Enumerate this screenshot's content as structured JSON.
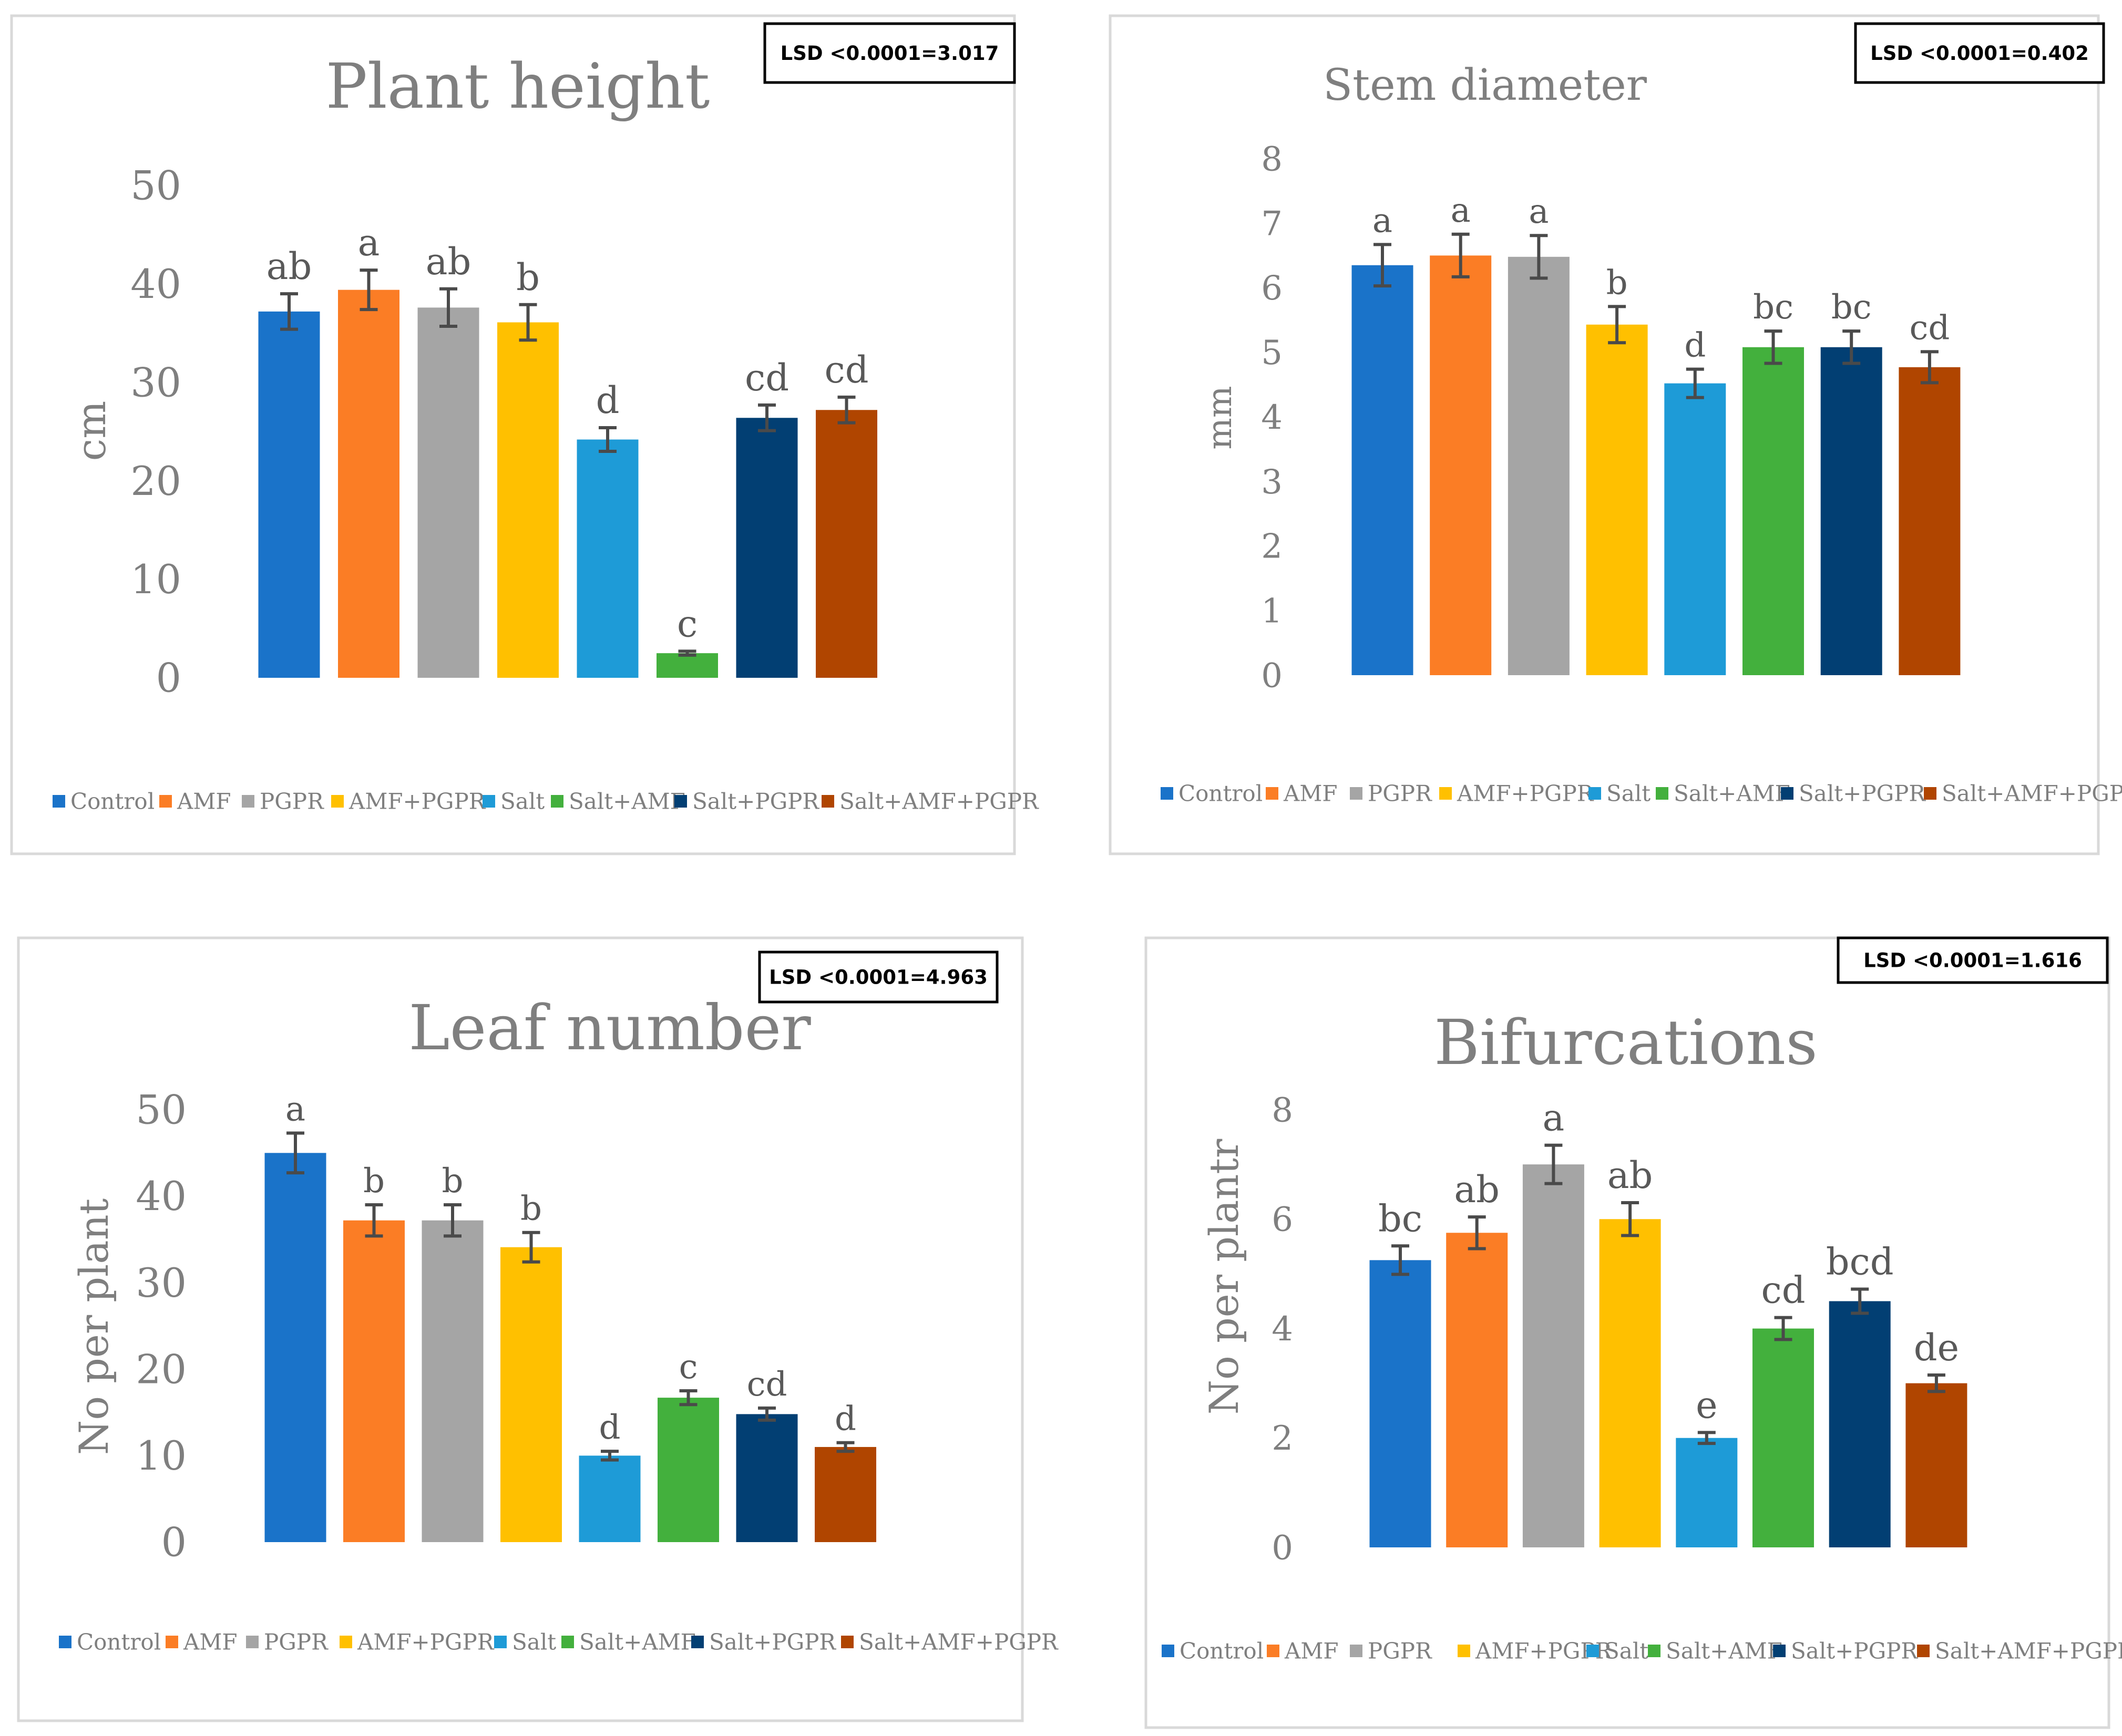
{
  "colors": {
    "Control": "#1a73c9",
    "AMF": "#fb7d25",
    "PGPR": "#a5a5a5",
    "AMF+PGPR": "#ffc000",
    "Salt": "#1e9bd7",
    "Salt+AMF": "#43b03d",
    "Salt+PGPR": "#023f73",
    "Salt+AMF+PGPR": "#b04500",
    "axis_text": "#7f7f7f",
    "letter_text": "#595959",
    "error_bar": "#4a4a4a",
    "frame": "#d9d9d9"
  },
  "legend": [
    "Control",
    "AMF",
    "PGPR",
    "AMF+PGPR",
    "Salt",
    "Salt+AMF",
    "Salt+PGPR",
    "Salt+AMF+PGPR"
  ],
  "chart_data": [
    {
      "type": "bar",
      "title": "Plant height",
      "ylabel": "cm",
      "xlabel": "",
      "lsd": "LSD <0.0001=3.017",
      "ylim": [
        0,
        50
      ],
      "yticks": [
        0,
        10,
        20,
        30,
        40,
        50
      ],
      "categories": [
        "Control",
        "AMF",
        "PGPR",
        "AMF+PGPR",
        "Salt",
        "Salt+AMF",
        "Salt+PGPR",
        "Salt+AMF+PGPR"
      ],
      "values": [
        37.2,
        39.4,
        37.6,
        36.1,
        24.2,
        2.5,
        26.4,
        27.2
      ],
      "errors": [
        1.8,
        2.0,
        1.9,
        1.8,
        1.2,
        0.2,
        1.3,
        1.3
      ],
      "letters": [
        "ab",
        "a",
        "ab",
        "b",
        "d",
        "c",
        "cd",
        "cd"
      ]
    },
    {
      "type": "bar",
      "title": "Stem diameter",
      "ylabel": "mm",
      "xlabel": "",
      "lsd": "LSD <0.0001=0.402",
      "ylim": [
        0,
        8
      ],
      "yticks": [
        0,
        1,
        2,
        3,
        4,
        5,
        6,
        7,
        8
      ],
      "categories": [
        "Control",
        "AMF",
        "PGPR",
        "AMF+PGPR",
        "Salt",
        "Salt+AMF",
        "Salt+PGPR",
        "Salt+AMF+PGPR"
      ],
      "values": [
        6.35,
        6.5,
        6.48,
        5.43,
        4.52,
        5.08,
        5.08,
        4.77
      ],
      "errors": [
        0.32,
        0.33,
        0.33,
        0.28,
        0.22,
        0.25,
        0.25,
        0.24
      ],
      "letters": [
        "a",
        "a",
        "a",
        "b",
        "d",
        "bc",
        "bc",
        "cd"
      ]
    },
    {
      "type": "bar",
      "title": "Leaf number",
      "ylabel": "No per plant",
      "xlabel": "",
      "lsd": "LSD <0.0001=4.963",
      "ylim": [
        0,
        50
      ],
      "yticks": [
        0,
        10,
        20,
        30,
        40,
        50
      ],
      "categories": [
        "Control",
        "AMF",
        "PGPR",
        "AMF+PGPR",
        "Salt",
        "Salt+AMF",
        "Salt+PGPR",
        "Salt+AMF+PGPR"
      ],
      "values": [
        45.0,
        37.2,
        37.2,
        34.1,
        10.0,
        16.7,
        14.8,
        11.0
      ],
      "errors": [
        2.3,
        1.8,
        1.8,
        1.7,
        0.5,
        0.8,
        0.7,
        0.5
      ],
      "letters": [
        "a",
        "b",
        "b",
        "b",
        "d",
        "c",
        "cd",
        "d"
      ]
    },
    {
      "type": "bar",
      "title": "Bifurcations",
      "ylabel": "No per plantr",
      "xlabel": "",
      "lsd": "LSD <0.0001=1.616",
      "ylim": [
        0,
        8
      ],
      "yticks": [
        0,
        2,
        4,
        6,
        8
      ],
      "categories": [
        "Control",
        "AMF",
        "PGPR",
        "AMF+PGPR",
        "Salt",
        "Salt+AMF",
        "Salt+PGPR",
        "Salt+AMF+PGPR"
      ],
      "values": [
        5.25,
        5.75,
        7.0,
        6.0,
        2.0,
        4.0,
        4.5,
        3.0
      ],
      "errors": [
        0.26,
        0.29,
        0.35,
        0.3,
        0.1,
        0.2,
        0.22,
        0.15
      ],
      "letters": [
        "bc",
        "ab",
        "a",
        "ab",
        "e",
        "cd",
        "bcd",
        "de"
      ]
    }
  ]
}
